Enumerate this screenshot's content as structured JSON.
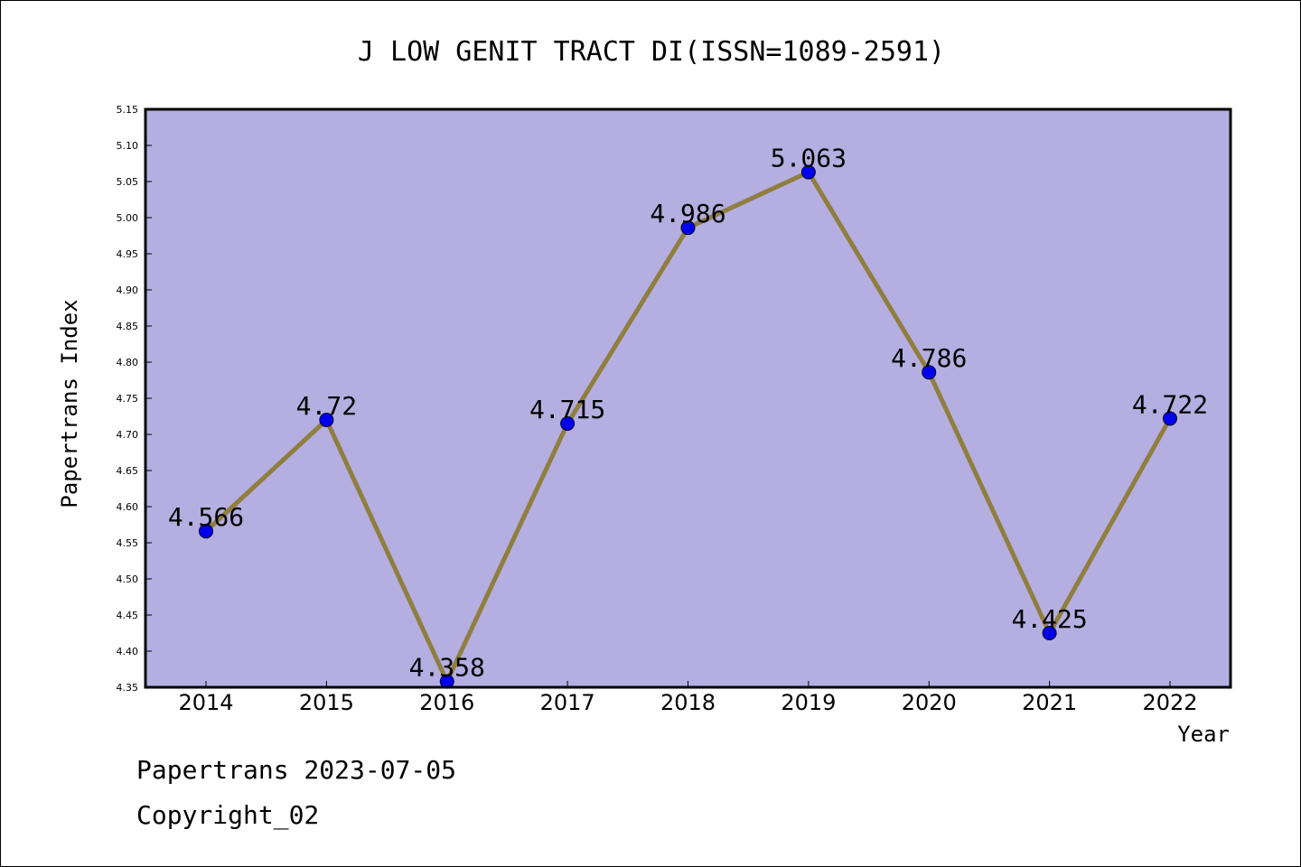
{
  "chart_data": {
    "type": "line",
    "title": "J LOW GENIT TRACT DI(ISSN=1089-2591)",
    "xlabel": "Year",
    "ylabel": "Papertrans Index",
    "categories": [
      "2014",
      "2015",
      "2016",
      "2017",
      "2018",
      "2019",
      "2020",
      "2021",
      "2022"
    ],
    "values": [
      4.566,
      4.72,
      4.358,
      4.715,
      4.986,
      5.063,
      4.786,
      4.425,
      4.722
    ],
    "data_labels": [
      "4.566",
      "4.72",
      "4.358",
      "4.715",
      "4.986",
      "5.063",
      "4.786",
      "4.425",
      "4.722"
    ],
    "ylim": [
      4.35,
      5.15
    ],
    "yticks": [
      "4.35",
      "4.40",
      "4.45",
      "4.50",
      "4.55",
      "4.60",
      "4.65",
      "4.70",
      "4.75",
      "4.80",
      "4.85",
      "4.90",
      "4.95",
      "5.00",
      "5.05",
      "5.10",
      "5.15"
    ],
    "grid": false,
    "colors": {
      "plot_background": "#b5aee1",
      "line": "#8f7e3e",
      "marker": "#0000ee"
    }
  },
  "footer": {
    "line1": "Papertrans 2023-07-05",
    "line2": "Copyright_02"
  }
}
